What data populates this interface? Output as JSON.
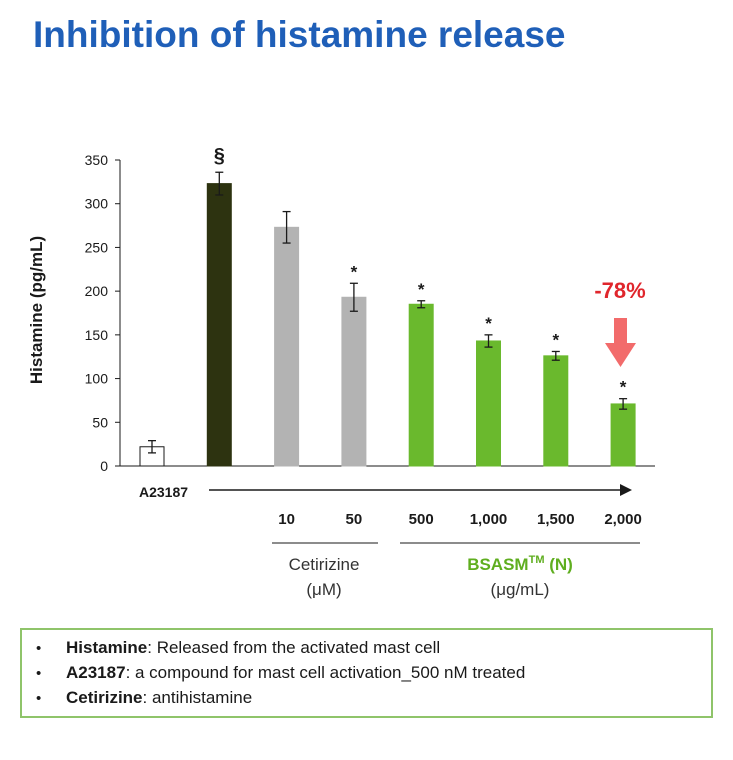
{
  "title": "Inhibition of histamine release",
  "chart_data": {
    "type": "bar",
    "ylabel": "Histamine (pg/mL)",
    "ylim": [
      0,
      350
    ],
    "yticks": [
      0,
      50,
      100,
      150,
      200,
      250,
      300,
      350
    ],
    "categories": [
      "",
      "",
      "10",
      "50",
      "500",
      "1,000",
      "1,500",
      "2,000"
    ],
    "values": [
      22,
      323,
      273,
      193,
      185,
      143,
      126,
      71
    ],
    "errors": [
      7,
      13,
      18,
      16,
      4,
      7,
      5,
      6
    ],
    "significance": [
      "",
      "§",
      "",
      "*",
      "*",
      "*",
      "*",
      "*"
    ],
    "bar_colors": [
      "#ffffff",
      "#2d3310",
      "#b3b3b3",
      "#b3b3b3",
      "#6ab92d",
      "#6ab92d",
      "#6ab92d",
      "#6ab92d"
    ],
    "arrow_label": "A23187",
    "groups": [
      {
        "name": "Cetirizine",
        "unit": "(μM)",
        "color": "#333333"
      },
      {
        "name": "BSASM",
        "superscript": "TM",
        "suffix": " (N)",
        "unit": "(μg/mL)",
        "color": "#5fae1f"
      }
    ],
    "annotation": {
      "text": "-78%",
      "color": "#e0262c",
      "arrow_color": "#f26b6b"
    },
    "grid": false
  },
  "notes": [
    {
      "term": "Histamine",
      "text": ": Released from the activated mast cell"
    },
    {
      "term": "A23187",
      "text": ": a compound for mast cell activation_500 nM treated"
    },
    {
      "term": "Cetirizine",
      "text": ": antihistamine"
    }
  ]
}
